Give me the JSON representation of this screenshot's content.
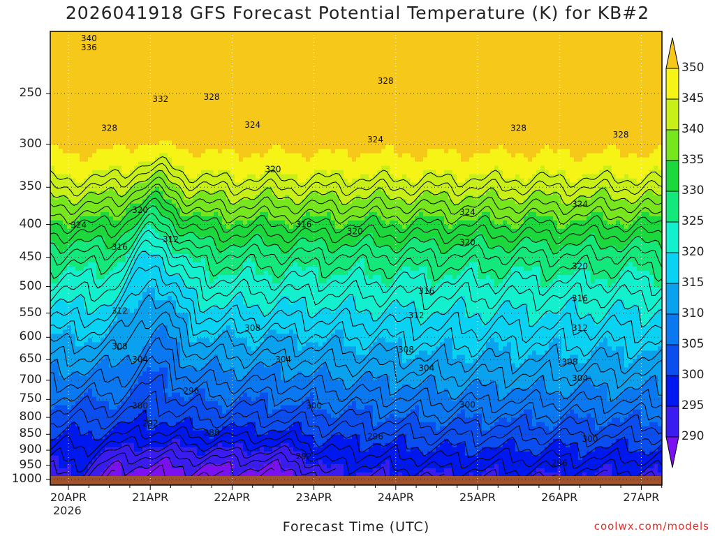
{
  "title": "2026041918 GFS Forecast Potential Temperature (K) for KB#2",
  "credit": "coolwx.com/models",
  "chart_data": {
    "type": "heatmap",
    "title": "2026041918 GFS Forecast Potential Temperature (K) for KB#2",
    "xlabel": "Forecast Time (UTC)",
    "ylabel": "",
    "x_ticks": [
      "20APR",
      "21APR",
      "22APR",
      "23APR",
      "24APR",
      "25APR",
      "26APR",
      "27APR"
    ],
    "x_sub_tick": "2026",
    "y_ticks": [
      250,
      300,
      350,
      400,
      450,
      500,
      550,
      600,
      650,
      700,
      750,
      800,
      850,
      900,
      950,
      1000
    ],
    "y_scale": "log-pressure (inverted)",
    "grid": true,
    "colorbar": {
      "levels": [
        290,
        295,
        300,
        305,
        310,
        315,
        320,
        325,
        330,
        335,
        340,
        345,
        350
      ],
      "labels": [
        "290",
        "295",
        "300",
        "305",
        "310",
        "315",
        "320",
        "325",
        "330",
        "335",
        "340",
        "345",
        "350"
      ],
      "colors": [
        "#7b10f0",
        "#3a1cf0",
        "#0018f0",
        "#0a4ef0",
        "#0a78f0",
        "#0aa2ee",
        "#0ad2f2",
        "#12f0ce",
        "#14e87a",
        "#1cd83c",
        "#78e61e",
        "#c8f018",
        "#f6f416",
        "#f6c81a"
      ],
      "position": "right"
    },
    "contour_labels": [
      {
        "value": "340",
        "time": "20APR 06Z",
        "p": 205
      },
      {
        "value": "336",
        "time": "20APR 06Z",
        "p": 212
      },
      {
        "value": "332",
        "time": "21APR 03Z",
        "p": 255
      },
      {
        "value": "328",
        "time": "21APR 18Z",
        "p": 253
      },
      {
        "value": "328",
        "time": "20APR 12Z",
        "p": 283
      },
      {
        "value": "324",
        "time": "22APR 06Z",
        "p": 280
      },
      {
        "value": "328",
        "time": "23APR 21Z",
        "p": 239
      },
      {
        "value": "324",
        "time": "23APR 18Z",
        "p": 295
      },
      {
        "value": "328",
        "time": "25APR 12Z",
        "p": 283
      },
      {
        "value": "328",
        "time": "26APR 18Z",
        "p": 290
      },
      {
        "value": "320",
        "time": "22APR 12Z",
        "p": 328
      },
      {
        "value": "324",
        "time": "20APR 03Z",
        "p": 401
      },
      {
        "value": "320",
        "time": "20APR 21Z",
        "p": 380
      },
      {
        "value": "324",
        "time": "24APR 21Z",
        "p": 383
      },
      {
        "value": "324",
        "time": "26APR 06Z",
        "p": 372
      },
      {
        "value": "316",
        "time": "20APR 15Z",
        "p": 434
      },
      {
        "value": "312",
        "time": "21APR 06Z",
        "p": 422
      },
      {
        "value": "316",
        "time": "22APR 21Z",
        "p": 400
      },
      {
        "value": "320",
        "time": "23APR 12Z",
        "p": 410
      },
      {
        "value": "320",
        "time": "24APR 21Z",
        "p": 427
      },
      {
        "value": "320",
        "time": "26APR 06Z",
        "p": 465
      },
      {
        "value": "316",
        "time": "24APR 09Z",
        "p": 508
      },
      {
        "value": "316",
        "time": "26APR 06Z",
        "p": 522
      },
      {
        "value": "312",
        "time": "20APR 15Z",
        "p": 546
      },
      {
        "value": "312",
        "time": "24APR 06Z",
        "p": 555
      },
      {
        "value": "312",
        "time": "26APR 06Z",
        "p": 580
      },
      {
        "value": "308",
        "time": "22APR 06Z",
        "p": 580
      },
      {
        "value": "308",
        "time": "20APR 15Z",
        "p": 620
      },
      {
        "value": "308",
        "time": "24APR 03Z",
        "p": 627
      },
      {
        "value": "308",
        "time": "26APR 03Z",
        "p": 655
      },
      {
        "value": "304",
        "time": "20APR 21Z",
        "p": 650
      },
      {
        "value": "304",
        "time": "22APR 15Z",
        "p": 650
      },
      {
        "value": "304",
        "time": "24APR 09Z",
        "p": 670
      },
      {
        "value": "304",
        "time": "26APR 06Z",
        "p": 695
      },
      {
        "value": "300",
        "time": "20APR 21Z",
        "p": 767
      },
      {
        "value": "296",
        "time": "21APR 12Z",
        "p": 727
      },
      {
        "value": "300",
        "time": "23APR 00Z",
        "p": 767
      },
      {
        "value": "300",
        "time": "24APR 21Z",
        "p": 765
      },
      {
        "value": "300",
        "time": "26APR 09Z",
        "p": 865
      },
      {
        "value": "292",
        "time": "21APR 00Z",
        "p": 817
      },
      {
        "value": "288",
        "time": "21APR 18Z",
        "p": 845
      },
      {
        "value": "296",
        "time": "23APR 18Z",
        "p": 857
      },
      {
        "value": "292",
        "time": "22APR 21Z",
        "p": 920
      },
      {
        "value": "296",
        "time": "26APR 00Z",
        "p": 943
      }
    ]
  }
}
